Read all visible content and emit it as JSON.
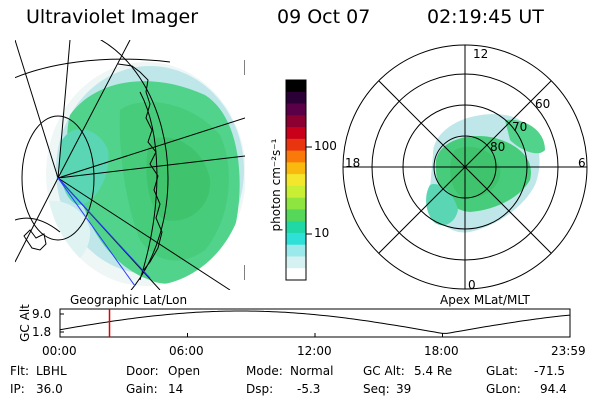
{
  "header": {
    "instrument": "Ultraviolet Imager",
    "date": "09 Oct 07",
    "time": "02:19:45 UT"
  },
  "left_panel": {
    "caption": "Geographic Lat/Lon"
  },
  "right_panel": {
    "caption": "Apex MLat/MLT",
    "mlt_labels": [
      "12",
      "18",
      "6",
      "0"
    ],
    "lat_labels": [
      "60",
      "70",
      "80"
    ]
  },
  "colorbar": {
    "unit_label": "photon cm⁻²s⁻¹",
    "ticks": [
      "100",
      "10"
    ],
    "colors": [
      "#000000",
      "#2b0036",
      "#5a0049",
      "#8b0030",
      "#c8001a",
      "#e8340f",
      "#f97a0a",
      "#f9b90f",
      "#f3e62d",
      "#c8ef33",
      "#8fe53f",
      "#55d85a",
      "#1fd8a6",
      "#2ee0d8",
      "#9be9ea",
      "#d6f1f1",
      "#ffffff"
    ]
  },
  "altitude_plot": {
    "ylabel": "GC Alt",
    "ytick_top": "9.0",
    "ytick_bottom": "1.8",
    "xticks": [
      "00:00",
      "06:00",
      "12:00",
      "18:00",
      "23:59"
    ],
    "current_time_hours": 2.33
  },
  "info": {
    "filter_label": "Flt:",
    "filter_value": "LBHL",
    "ip_label": "IP:",
    "ip_value": "36.0",
    "door_label": "Door:",
    "door_value": "Open",
    "gain_label": "Gain:",
    "gain_value": "14",
    "mode_label": "Mode:",
    "mode_value": "Normal",
    "dsp_label": "Dsp:",
    "dsp_value": "-5.3",
    "gcalt_label": "GC Alt:",
    "gcalt_value": "5.4 Re",
    "seq_label": "Seq:",
    "seq_value": "39",
    "glat_label": "GLat:",
    "glat_value": "-71.5",
    "glon_label": "GLon:",
    "glon_value": "94.4"
  }
}
